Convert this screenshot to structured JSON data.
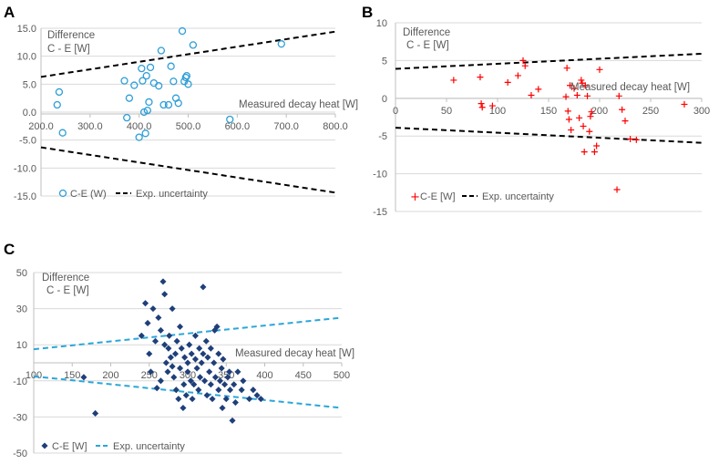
{
  "chart_data": [
    {
      "panel": "A",
      "type": "scatter",
      "ylabel_line1": "Difference",
      "ylabel_line2": "C - E [W]",
      "xlabel": "Measured decay heat [W]",
      "xlim": [
        200,
        800
      ],
      "ylim": [
        -15,
        15
      ],
      "xticks": [
        "200.0",
        "300.0",
        "400.0",
        "500.0",
        "600.0",
        "700.0",
        "800.0"
      ],
      "yticks": [
        "15.0",
        "10.0",
        "5.0",
        "0.0",
        "-5.0",
        "-10.0",
        "-15.0"
      ],
      "legend": [
        "C-E (W)",
        "Exp. uncertainty"
      ],
      "colors": {
        "points": "#2e9ed6",
        "uncertainty": "#000000"
      },
      "series": [
        {
          "name": "C-E (W)",
          "x": [
            233,
            237,
            244,
            370,
            375,
            380,
            390,
            400,
            405,
            407,
            410,
            413,
            415,
            417,
            420,
            423,
            430,
            440,
            445,
            450,
            460,
            465,
            470,
            475,
            480,
            488,
            492,
            495,
            497,
            500,
            510,
            585,
            690
          ],
          "y": [
            1.3,
            3.6,
            -3.7,
            5.6,
            -1.0,
            2.5,
            4.8,
            -4.5,
            7.8,
            5.6,
            0.0,
            -3.8,
            6.5,
            0.3,
            1.8,
            8.0,
            5.2,
            4.7,
            11.0,
            1.3,
            1.3,
            8.2,
            5.5,
            2.5,
            1.6,
            14.5,
            5.5,
            6.2,
            6.5,
            5.0,
            12.0,
            -1.3,
            12.2
          ]
        },
        {
          "name": "Exp. uncertainty",
          "x": [
            200,
            800
          ],
          "y": [
            6.3,
            14.4
          ]
        },
        {
          "name": "Exp. uncertainty (lower)",
          "x": [
            200,
            800
          ],
          "y": [
            -6.3,
            -14.4
          ]
        }
      ]
    },
    {
      "panel": "B",
      "type": "scatter",
      "ylabel_line1": "Difference",
      "ylabel_line2": "C - E [W]",
      "xlabel": "Measured decay heat [W]",
      "xlim": [
        0,
        300
      ],
      "ylim": [
        -15,
        10
      ],
      "xticks": [
        "0",
        "50",
        "100",
        "150",
        "200",
        "250",
        "300"
      ],
      "yticks": [
        "10",
        "5",
        "0",
        "-5",
        "-10",
        "-15"
      ],
      "legend": [
        "C-E [W]",
        "Exp. uncertainty"
      ],
      "colors": {
        "points": "#ff0000",
        "uncertainty": "#000000"
      },
      "series": [
        {
          "name": "C-E [W]",
          "x": [
            57,
            83,
            84,
            85,
            95,
            110,
            120,
            125,
            127,
            133,
            140,
            167,
            168,
            169,
            170,
            171,
            172,
            175,
            178,
            180,
            182,
            183,
            184,
            185,
            186,
            188,
            190,
            191,
            192,
            195,
            197,
            200,
            217,
            219,
            222,
            225,
            230,
            236,
            283
          ],
          "y": [
            2.4,
            2.8,
            -0.7,
            -1.2,
            -1.0,
            2.1,
            3.0,
            5.0,
            4.3,
            0.4,
            1.2,
            0.2,
            4.0,
            -1.7,
            -2.8,
            1.7,
            -4.2,
            1.3,
            0.4,
            -2.6,
            2.4,
            2.0,
            -3.7,
            -7.1,
            1.7,
            0.3,
            -4.4,
            -2.4,
            -1.8,
            -7.1,
            -6.3,
            3.8,
            -12.1,
            0.3,
            -1.5,
            -3.0,
            -5.4,
            -5.5,
            -0.8
          ]
        },
        {
          "name": "Exp. uncertainty",
          "x": [
            0,
            300
          ],
          "y": [
            3.9,
            5.9
          ]
        },
        {
          "name": "Exp. uncertainty (lower)",
          "x": [
            0,
            300
          ],
          "y": [
            -3.9,
            -5.9
          ]
        }
      ]
    },
    {
      "panel": "C",
      "type": "scatter",
      "ylabel_line1": "Difference",
      "ylabel_line2": "C - E [W]",
      "xlabel": "Measured decay heat [W]",
      "xlim": [
        100,
        500
      ],
      "ylim": [
        -50,
        50
      ],
      "xticks": [
        "100",
        "150",
        "200",
        "250",
        "300",
        "350",
        "400",
        "450",
        "500"
      ],
      "yticks": [
        "50",
        "30",
        "10",
        "-10",
        "-30",
        "-50"
      ],
      "legend": [
        "C-E [W]",
        "Exp. uncertainty"
      ],
      "colors": {
        "points": "#1f3f7a",
        "uncertainty": "#2aa6d8"
      },
      "series": [
        {
          "name": "C-E [W]",
          "x": [
            165,
            180,
            240,
            245,
            248,
            250,
            252,
            255,
            258,
            260,
            262,
            265,
            265,
            268,
            270,
            270,
            272,
            274,
            275,
            276,
            278,
            280,
            280,
            282,
            284,
            285,
            286,
            288,
            290,
            290,
            292,
            294,
            295,
            296,
            298,
            300,
            300,
            302,
            304,
            305,
            306,
            308,
            310,
            310,
            312,
            314,
            315,
            316,
            318,
            320,
            320,
            322,
            324,
            325,
            326,
            328,
            330,
            330,
            332,
            334,
            335,
            336,
            338,
            340,
            340,
            342,
            344,
            345,
            346,
            348,
            350,
            352,
            354,
            355,
            358,
            360,
            362,
            365,
            370,
            372,
            380,
            385,
            390,
            395
          ],
          "y": [
            -8,
            -28,
            15,
            33,
            22,
            5,
            -5,
            30,
            12,
            -14,
            25,
            18,
            -10,
            45,
            10,
            38,
            0,
            -5,
            8,
            15,
            3,
            -2,
            30,
            -8,
            5,
            -15,
            12,
            -20,
            -3,
            20,
            8,
            -25,
            -12,
            3,
            -18,
            0,
            -5,
            10,
            -10,
            5,
            -20,
            -12,
            2,
            15,
            -3,
            -15,
            8,
            -8,
            0,
            5,
            42,
            -10,
            12,
            -18,
            3,
            -5,
            -12,
            8,
            -20,
            0,
            18,
            -8,
            20,
            -15,
            5,
            -10,
            -3,
            -25,
            2,
            -12,
            -20,
            -8,
            -5,
            -15,
            -32,
            -12,
            -22,
            -5,
            -15,
            -10,
            -20,
            -15,
            -18,
            -20
          ]
        },
        {
          "name": "Exp. uncertainty",
          "x": [
            100,
            500
          ],
          "y": [
            7.5,
            25
          ]
        },
        {
          "name": "Exp. uncertainty (lower)",
          "x": [
            100,
            500
          ],
          "y": [
            -7.5,
            -25
          ]
        }
      ]
    }
  ]
}
